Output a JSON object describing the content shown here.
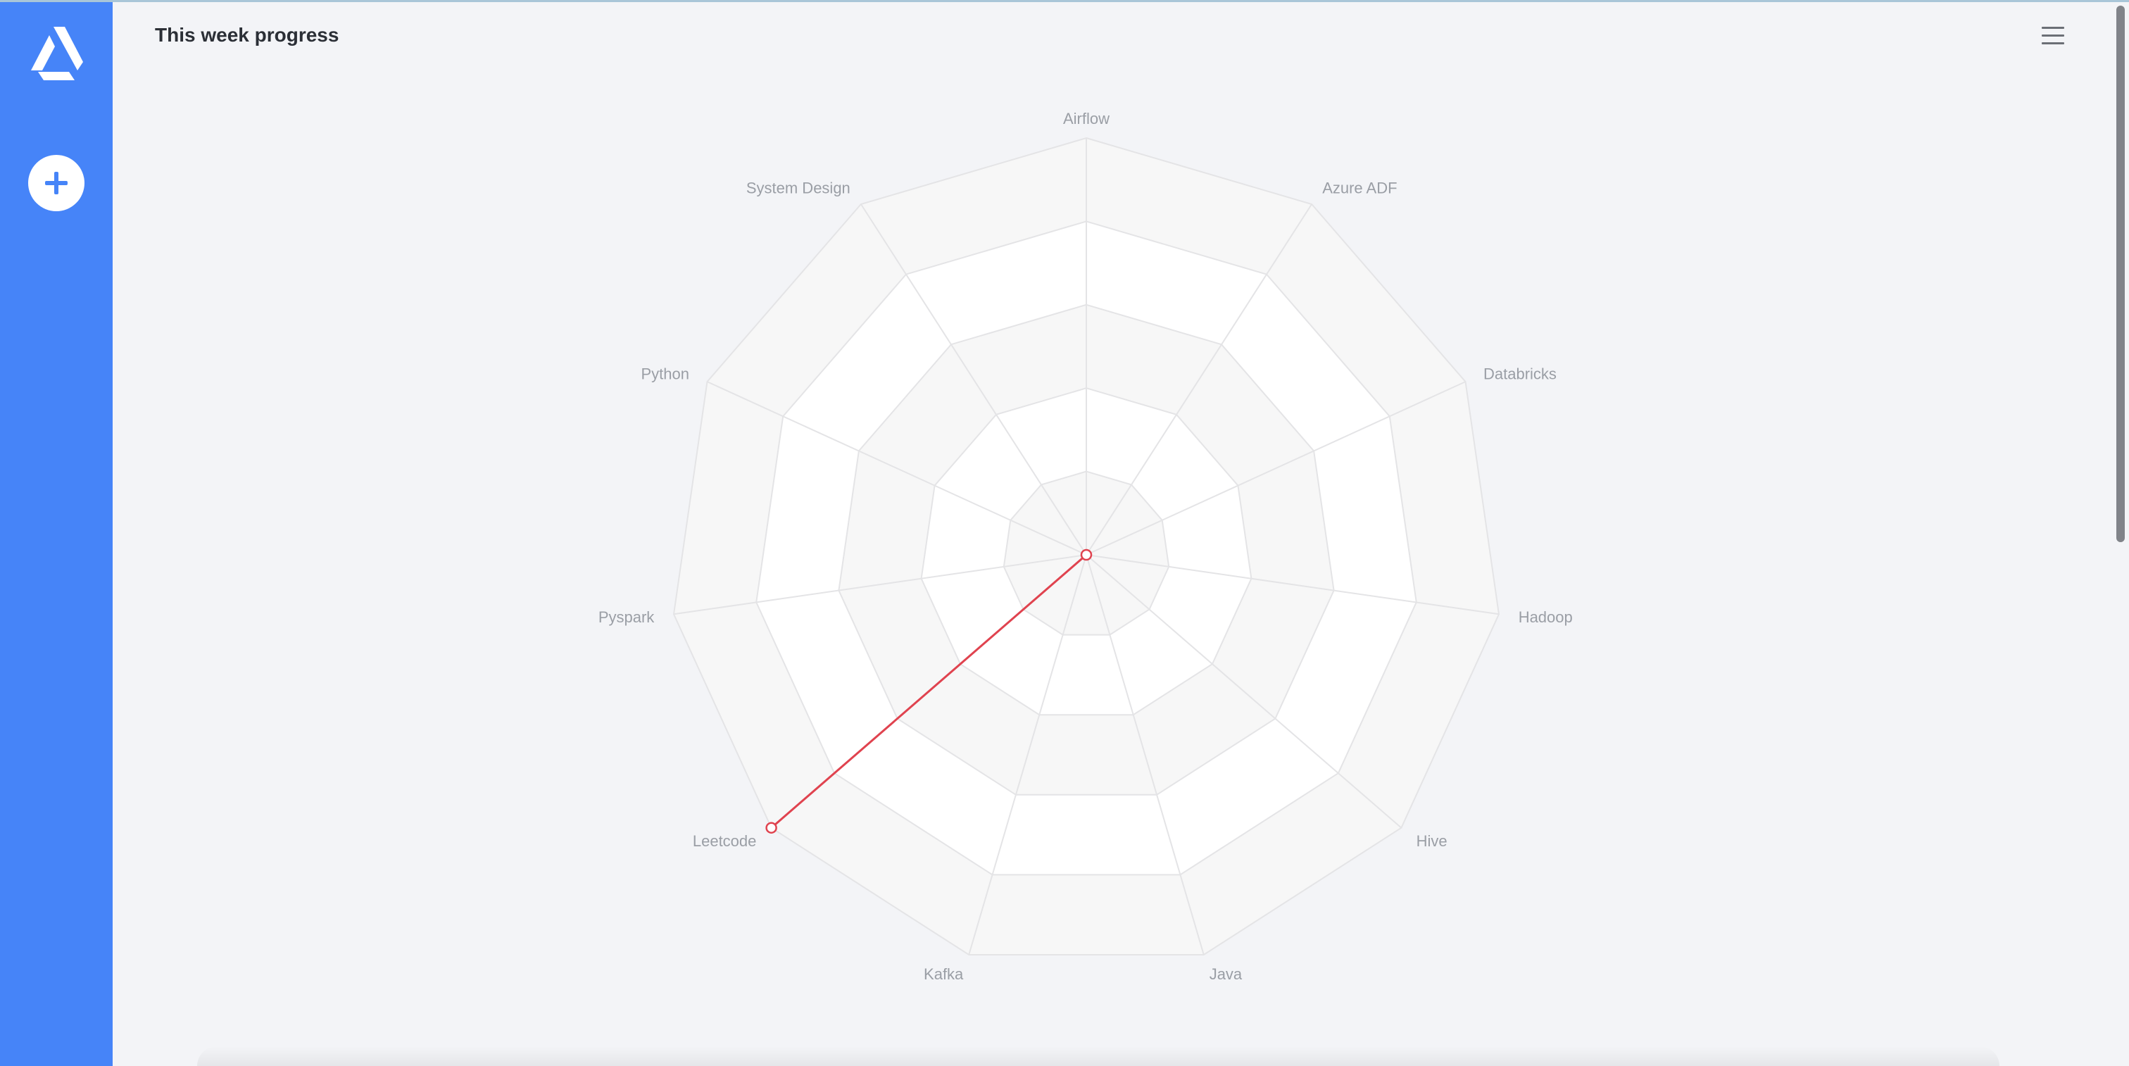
{
  "header": {
    "title": "This week progress"
  },
  "icons": {
    "logo": "app-logo-icon",
    "add": "plus-icon",
    "menu": "hamburger-menu-icon"
  },
  "colors": {
    "sidebar": "#4684f8",
    "series": "#e0434f",
    "background": "#f3f4f7"
  },
  "chart_data": {
    "type": "radar",
    "title": "",
    "categories": [
      "Airflow",
      "Azure ADF",
      "Databricks",
      "Hadoop",
      "Hive",
      "Java",
      "Kafka",
      "Leetcode",
      "Pyspark",
      "Python",
      "System Design"
    ],
    "series": [
      {
        "values": [
          0,
          0,
          0,
          0,
          0,
          0,
          0,
          5,
          0,
          0,
          0
        ]
      }
    ],
    "rlim": [
      0,
      5
    ],
    "rings": 5,
    "grid": true,
    "legend": "none"
  }
}
